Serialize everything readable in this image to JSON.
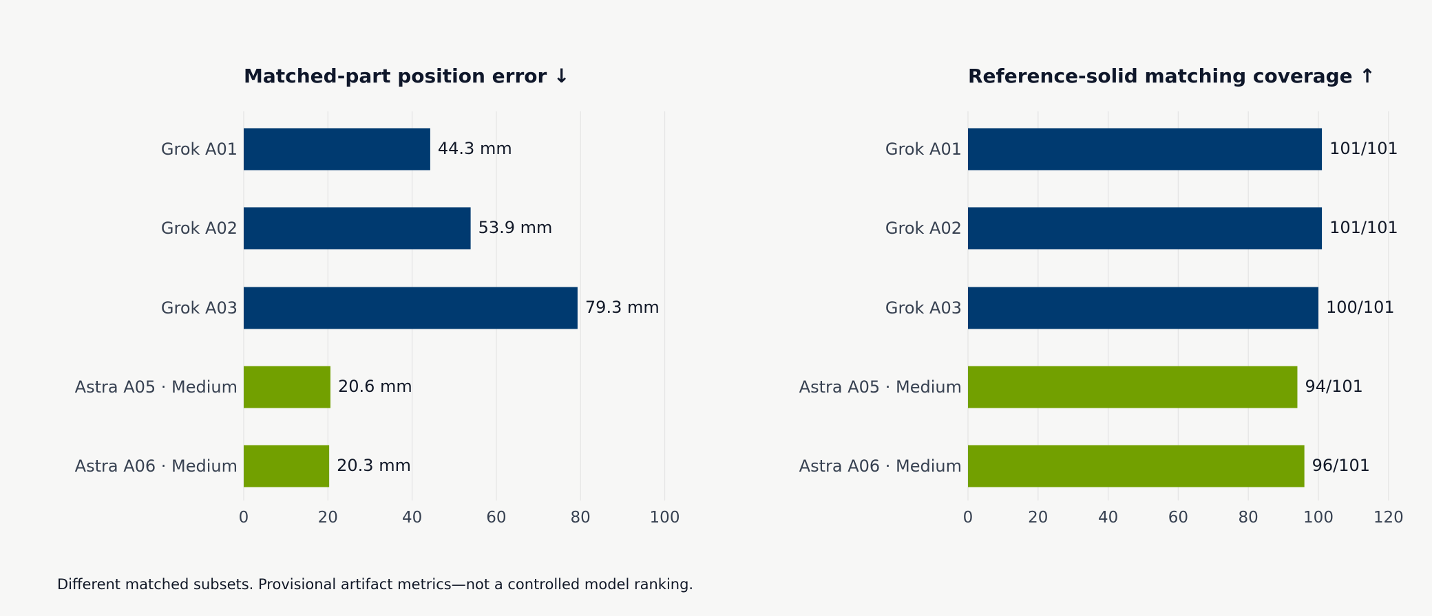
{
  "colors": {
    "background": "#f7f7f6",
    "grok": "#003a70",
    "astra": "#72a000",
    "title": "#0f172a",
    "category_label": "#374151",
    "tick_label": "#374151",
    "value_label": "#111827",
    "grid": "#e5e5e5"
  },
  "footnote": "Different matched subsets. Provisional artifact metrics—not a controlled model ranking.",
  "chart_data": [
    {
      "type": "bar",
      "orientation": "horizontal",
      "title": "Matched-part position error ↓",
      "categories": [
        "Grok A01",
        "Grok A02",
        "Grok A03",
        "Astra A05 · Medium",
        "Astra A06 · Medium"
      ],
      "values": [
        44.3,
        53.9,
        79.3,
        20.6,
        20.3
      ],
      "value_labels": [
        "44.3 mm",
        "53.9 mm",
        "79.3 mm",
        "20.6 mm",
        "20.3 mm"
      ],
      "bar_colors": [
        "#003a70",
        "#003a70",
        "#003a70",
        "#72a000",
        "#72a000"
      ],
      "xticks": [
        0,
        20,
        40,
        60,
        80,
        100
      ],
      "xlim": [
        0,
        100
      ],
      "grid": "vertical"
    },
    {
      "type": "bar",
      "orientation": "horizontal",
      "title": "Reference-solid matching coverage ↑",
      "categories": [
        "Grok A01",
        "Grok A02",
        "Grok A03",
        "Astra A05 · Medium",
        "Astra A06 · Medium"
      ],
      "values": [
        101,
        101,
        100,
        94,
        96
      ],
      "value_labels": [
        "101/101",
        "101/101",
        "100/101",
        "94/101",
        "96/101"
      ],
      "bar_colors": [
        "#003a70",
        "#003a70",
        "#003a70",
        "#72a000",
        "#72a000"
      ],
      "xticks": [
        0,
        20,
        40,
        60,
        80,
        100,
        120
      ],
      "xlim": [
        0,
        120
      ],
      "grid": "vertical"
    }
  ]
}
